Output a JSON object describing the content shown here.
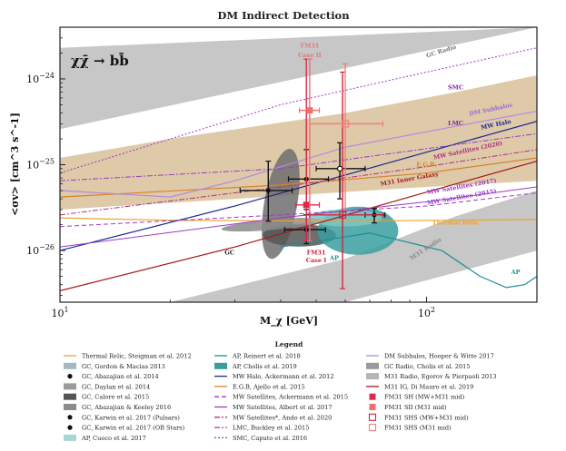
{
  "chart_data": {
    "type": "scatter",
    "title": "DM Indirect Detection",
    "xlabel": "M_χ [GeV]",
    "ylabel": "<σv> [cm^3 s^-1]",
    "x_scale": "log",
    "y_scale": "log",
    "xlim": [
      10,
      200
    ],
    "ylim": [
      2.5e-27,
      4e-24
    ],
    "x_ticks": [
      {
        "value": 10,
        "label": "10^1"
      },
      {
        "value": 100,
        "label": "10^2"
      }
    ],
    "y_ticks": [
      {
        "value": 1e-26,
        "label": "10^-26"
      },
      {
        "value": 1e-25,
        "label": "10^-25"
      },
      {
        "value": 1e-24,
        "label": "10^-24"
      }
    ],
    "channel_label": "χχ̄ →  bb̄",
    "legend_title": "Legend",
    "bands": [
      {
        "name": "GC Radio",
        "color": "#bdbdbd",
        "upper": [
          [
            10,
            2.3e-24
          ],
          [
            200,
            4e-24
          ]
        ],
        "lower": [
          [
            10,
            2.6e-25
          ],
          [
            200,
            4e-24
          ]
        ]
      },
      {
        "name": "E.G.B. band",
        "color": "#d8c09a",
        "upper": [
          [
            10,
            1.2e-25
          ],
          [
            20,
            2e-25
          ],
          [
            60,
            4e-25
          ],
          [
            120,
            7e-25
          ],
          [
            200,
            1.1e-24
          ]
        ],
        "lower": [
          [
            10,
            3e-26
          ],
          [
            30,
            4e-26
          ],
          [
            100,
            5.5e-26
          ],
          [
            200,
            6.5e-26
          ]
        ]
      },
      {
        "name": "M31 Radio",
        "color": "#bdbdbd",
        "upper": [
          [
            20,
            2.5e-27
          ],
          [
            60,
            8e-27
          ],
          [
            120,
            2.5e-26
          ],
          [
            200,
            5e-26
          ]
        ],
        "lower": [
          [
            60,
            2.5e-27
          ],
          [
            200,
            1e-26
          ]
        ]
      }
    ],
    "blobs": [
      {
        "name": "GC, Daylan et al. 2014",
        "color": "#6f6f6f",
        "cx": 40,
        "cy": 3.5e-26,
        "dx": 0.045,
        "dy": 0.65,
        "rot": 10
      },
      {
        "name": "GC, Calore et al. 2015",
        "color": "#555555",
        "cx": 45,
        "cy": 1.5e-26,
        "dx": 0.1,
        "dy": 0.13,
        "rot": 0
      },
      {
        "name": "GC, Abazajian & Keeley 2016",
        "color": "#8a8a8a",
        "cx": 38,
        "cy": 2e-26,
        "dx": 0.14,
        "dy": 0.06,
        "rot": -5
      },
      {
        "name": "AP, Cholis et al. 2019",
        "color": "#3a9da0",
        "cx": 65,
        "cy": 1.7e-26,
        "dx": 0.11,
        "dy": 0.28,
        "rot": 0
      },
      {
        "name": "AP, Cuoco et al. 2017",
        "color": "#7cc6c6",
        "cx": 60,
        "cy": 2.4e-26,
        "dx": 0.1,
        "dy": 0.1,
        "rot": 0
      }
    ],
    "series": [
      {
        "name": "Thermal Relic",
        "color": "#f0a030",
        "dash": "",
        "width": 1.2,
        "points": [
          [
            10,
            2.4e-26
          ],
          [
            20,
            2.25e-26
          ],
          [
            60,
            2.2e-26
          ],
          [
            200,
            2.3e-26
          ]
        ]
      },
      {
        "name": "MW Halo",
        "color": "#1c2a8c",
        "dash": "",
        "width": 1.2,
        "points": [
          [
            10,
            1e-26
          ],
          [
            30,
            3.3e-26
          ],
          [
            100,
            1.4e-25
          ],
          [
            200,
            3.2e-25
          ]
        ]
      },
      {
        "name": "E.G.B.",
        "color": "#d9822b",
        "dash": "",
        "width": 1.2,
        "points": [
          [
            10,
            4.2e-26
          ],
          [
            40,
            5.8e-26
          ],
          [
            100,
            8e-26
          ],
          [
            200,
            1.2e-25
          ]
        ]
      },
      {
        "name": "M31 Inner Galaxy",
        "color": "#a31b1b",
        "dash": "",
        "width": 1.2,
        "points": [
          [
            10,
            3.4e-27
          ],
          [
            30,
            1.1e-26
          ],
          [
            100,
            4.8e-26
          ],
          [
            200,
            1.1e-25
          ]
        ]
      },
      {
        "name": "DM Subhalos",
        "color": "#b28be0",
        "dash": "",
        "width": 1.2,
        "points": [
          [
            10,
            5e-26
          ],
          [
            20,
            4.2e-26
          ],
          [
            30,
            6.5e-26
          ],
          [
            60,
            1.6e-25
          ],
          [
            120,
            2.8e-25
          ],
          [
            200,
            4.2e-25
          ]
        ]
      },
      {
        "name": "LMC",
        "color": "#9b3bc4",
        "dash": "6 2 2 2",
        "width": 1.0,
        "points": [
          [
            10,
            6.5e-26
          ],
          [
            40,
            9e-26
          ],
          [
            80,
            1.35e-25
          ],
          [
            200,
            2.3e-25
          ]
        ]
      },
      {
        "name": "SMC",
        "color": "#9b3bc4",
        "dash": "2 2",
        "width": 1.0,
        "points": [
          [
            10,
            8e-26
          ],
          [
            40,
            5e-25
          ],
          [
            100,
            1.2e-24
          ],
          [
            200,
            2.3e-24
          ]
        ]
      },
      {
        "name": "MW Satellites (2020)",
        "color": "#b3317a",
        "dash": "6 2 2 2",
        "width": 1.0,
        "points": [
          [
            10,
            2.6e-26
          ],
          [
            40,
            5.5e-26
          ],
          [
            100,
            9.5e-26
          ],
          [
            200,
            1.5e-25
          ]
        ]
      },
      {
        "name": "MW Satellites (2017)",
        "color": "#9b3bc4",
        "dash": "",
        "width": 1.0,
        "points": [
          [
            10,
            1.1e-26
          ],
          [
            40,
            2.4e-26
          ],
          [
            100,
            3.7e-26
          ],
          [
            200,
            5.5e-26
          ]
        ]
      },
      {
        "name": "MW Satellites (2015)",
        "color": "#9b3bc4",
        "dash": "5 3",
        "width": 1.0,
        "points": [
          [
            10,
            1.9e-26
          ],
          [
            40,
            2.6e-26
          ],
          [
            100,
            3.3e-26
          ],
          [
            200,
            4.7e-26
          ]
        ]
      },
      {
        "name": "AP, Reinert et al. 2018",
        "color": "#1b8f94",
        "dash": "",
        "width": 1.2,
        "points": [
          [
            40,
            1.1e-26
          ],
          [
            70,
            1.6e-26
          ],
          [
            110,
            1e-26
          ],
          [
            140,
            5e-27
          ],
          [
            165,
            3.7e-27
          ],
          [
            185,
            4e-27
          ],
          [
            200,
            5e-27
          ]
        ]
      }
    ],
    "points": [
      {
        "name": "GC, Karwin et al. 2017 (Pulsars)",
        "marker": "filled-circle",
        "color": "#111111",
        "data": [
          {
            "x": 37,
            "y": 5e-26,
            "xerr": [
              31,
              43
            ],
            "yerr": [
              2.2e-26,
              1.1e-25
            ]
          },
          {
            "x": 47,
            "y": 6.8e-26,
            "xerr": [
              42,
              54
            ],
            "yerr": [
              3e-26,
              1.5e-25
            ]
          },
          {
            "x": 47,
            "y": 1.75e-26,
            "xerr": [
              41,
              53
            ],
            "yerr": [
              1.2e-26,
              2.6e-26
            ]
          },
          {
            "x": 72,
            "y": 2.6e-26,
            "xerr": [
              68,
              77
            ],
            "yerr": [
              2.1e-26,
              3.1e-26
            ]
          }
        ]
      },
      {
        "name": "GC, Karwin et al. 2017 (OB Stars)",
        "marker": "open-circle",
        "color": "#111111",
        "data": [
          {
            "x": 58,
            "y": 9e-26,
            "xerr": [
              50,
              68
            ],
            "yerr": [
              4e-26,
              1.8e-25
            ]
          }
        ]
      },
      {
        "name": "FM31 SH (MW+M31 mid)",
        "marker": "filled-square",
        "color": "#e0284a",
        "data": [
          {
            "x": 47,
            "y": 3.4e-26,
            "xerr": [
              44,
              51
            ],
            "yerr": [
              1.3e-26,
              1.7e-24
            ]
          }
        ]
      },
      {
        "name": "FM31 SII (M31 mid)",
        "marker": "filled-square",
        "color": "#f07070",
        "data": [
          {
            "x": 48,
            "y": 4.3e-25,
            "xerr": [
              45,
              51
            ],
            "yerr": [
              1.3e-26,
              1.7e-24
            ]
          }
        ]
      },
      {
        "name": "FM31 SHS (MW+M31 mid)",
        "marker": "open-square",
        "color": "#d0283e",
        "data": [
          {
            "x": 59,
            "y": 2.6e-26,
            "xerr": [
              48,
              76
            ],
            "yerr": [
              3.6e-27,
              1.2e-24
            ]
          }
        ]
      },
      {
        "name": "FM31 SHS (M31 mid)",
        "marker": "open-square",
        "color": "#f07f7f",
        "data": [
          {
            "x": 60,
            "y": 3e-25,
            "xerr": [
              48,
              76
            ],
            "yerr": [
              3e-26,
              1.5e-24
            ]
          }
        ]
      }
    ],
    "annotations": [
      {
        "text": "GC Radio",
        "x": 110,
        "y": 2e-24,
        "color": "#777777",
        "rot": -17
      },
      {
        "text": "SMC",
        "x": 120,
        "y": 7.5e-25,
        "color": "#7a2a9a",
        "rot": 0
      },
      {
        "text": "DM Subhalos",
        "x": 150,
        "y": 4.2e-25,
        "color": "#9b6bd0",
        "rot": -12
      },
      {
        "text": "LMC",
        "x": 120,
        "y": 2.9e-25,
        "color": "#7a2a9a",
        "rot": 0
      },
      {
        "text": "MW Halo",
        "x": 155,
        "y": 2.8e-25,
        "color": "#1c2a8c",
        "rot": -12
      },
      {
        "text": "MW Satellites (2020)",
        "x": 130,
        "y": 1.4e-25,
        "color": "#b3317a",
        "rot": -12
      },
      {
        "text": "E.G.B.",
        "x": 100,
        "y": 9.5e-26,
        "color": "#d9822b",
        "rot": 0
      },
      {
        "text": "M31 Inner Galaxy",
        "x": 90,
        "y": 6.5e-26,
        "color": "#a31b1b",
        "rot": -10
      },
      {
        "text": "MW Satellites (2017)",
        "x": 125,
        "y": 5.3e-26,
        "color": "#9b3bc4",
        "rot": -10
      },
      {
        "text": "MW Satellites (2015)",
        "x": 125,
        "y": 4e-26,
        "color": "#9b3bc4",
        "rot": -10
      },
      {
        "text": "Thermal Relic",
        "x": 120,
        "y": 2e-26,
        "color": "#f0a030",
        "rot": 0
      },
      {
        "text": "M31 Radio",
        "x": 100,
        "y": 1e-26,
        "color": "#888888",
        "rot": -33
      },
      {
        "text": "FM31",
        "x": 48,
        "y": 2.3e-24,
        "color": "#f07070",
        "rot": 0
      },
      {
        "text": "Case II",
        "x": 48,
        "y": 1.8e-24,
        "color": "#f07070",
        "rot": 0
      },
      {
        "text": "FM31",
        "x": 50,
        "y": 9e-27,
        "color": "#c0283e",
        "rot": 0
      },
      {
        "text": "Case I",
        "x": 50,
        "y": 7.3e-27,
        "color": "#c0283e",
        "rot": 0
      },
      {
        "text": "GC",
        "x": 29,
        "y": 9e-27,
        "color": "#222222",
        "rot": 0
      },
      {
        "text": "AP",
        "x": 56,
        "y": 7.8e-27,
        "color": "#1b8f94",
        "rot": 0
      },
      {
        "text": "AP",
        "x": 175,
        "y": 5.3e-27,
        "color": "#1b8f94",
        "rot": 0
      }
    ],
    "legend": [
      {
        "label": "Thermal Relic, Steigman et al. 2012",
        "kind": "line",
        "color": "#f0a030",
        "dash": ""
      },
      {
        "label": "GC, Gordon & Macias 2013",
        "kind": "patch",
        "color": "#a8b8c0"
      },
      {
        "label": "GC, Abazajian et al. 2014",
        "kind": "dot",
        "color": "#111111"
      },
      {
        "label": "GC, Daylan et al. 2014",
        "kind": "patch",
        "color": "#9a9a9a"
      },
      {
        "label": "GC, Calore et al. 2015",
        "kind": "patch",
        "color": "#555555"
      },
      {
        "label": "GC, Abazajian & Keeley 2016",
        "kind": "patch",
        "color": "#8a8a8a"
      },
      {
        "label": "GC, Karwin et al. 2017 (Pulsars)",
        "kind": "dot",
        "color": "#111111"
      },
      {
        "label": "GC, Karwin et al. 2017 (OB Stars)",
        "kind": "dot",
        "color": "#111111"
      },
      {
        "label": "AP, Cuoco et al. 2017",
        "kind": "patch",
        "color": "#a7d6d6"
      },
      {
        "label": "AP, Reinert et al. 2018",
        "kind": "line",
        "color": "#1b8f94",
        "dash": ""
      },
      {
        "label": "AP, Cholis et al. 2019",
        "kind": "patch",
        "color": "#3a9da0"
      },
      {
        "label": "MW Halo, Ackermann et al. 2012",
        "kind": "line",
        "color": "#1c2a8c",
        "dash": ""
      },
      {
        "label": "E.G.B, Ajello et al. 2015",
        "kind": "line",
        "color": "#d9822b",
        "dash": ""
      },
      {
        "label": "MW Satellites, Ackermann et al. 2015",
        "kind": "line",
        "color": "#9b3bc4",
        "dash": "5 3"
      },
      {
        "label": "MW Satellites, Albert et al. 2017",
        "kind": "line",
        "color": "#9b3bc4",
        "dash": ""
      },
      {
        "label": "MW Satellites*, Ando et al. 2020",
        "kind": "line",
        "color": "#b3317a",
        "dash": "6 2 2 2"
      },
      {
        "label": "LMC, Buckley et al. 2015",
        "kind": "line",
        "color": "#9b3bc4",
        "dash": "6 2 2 2"
      },
      {
        "label": "SMC, Caputo et al. 2016",
        "kind": "line",
        "color": "#9b3bc4",
        "dash": "2 2"
      },
      {
        "label": "DM Subhalos, Hooper & Witte 2017",
        "kind": "line",
        "color": "#b28be0",
        "dash": ""
      },
      {
        "label": "GC Radio, Cholis et al. 2015",
        "kind": "patch",
        "color": "#9a9a9a"
      },
      {
        "label": "M31 Radio, Egorov & Pierpaoli 2013",
        "kind": "patch",
        "color": "#b5b5b5"
      },
      {
        "label": "M31 IG, Di Mauro et al. 2019",
        "kind": "line",
        "color": "#a31b1b",
        "dash": ""
      },
      {
        "label": "FM31 SH (MW+M31 mid)",
        "kind": "filled-square",
        "color": "#e0284a"
      },
      {
        "label": "FM31 SII (M31 mid)",
        "kind": "filled-square",
        "color": "#f07070"
      },
      {
        "label": "FM31 SHS (MW+M31 mid)",
        "kind": "open-square",
        "color": "#d0283e"
      },
      {
        "label": "FM31 SHS (M31 mid)",
        "kind": "open-square",
        "color": "#f07f7f"
      }
    ]
  }
}
